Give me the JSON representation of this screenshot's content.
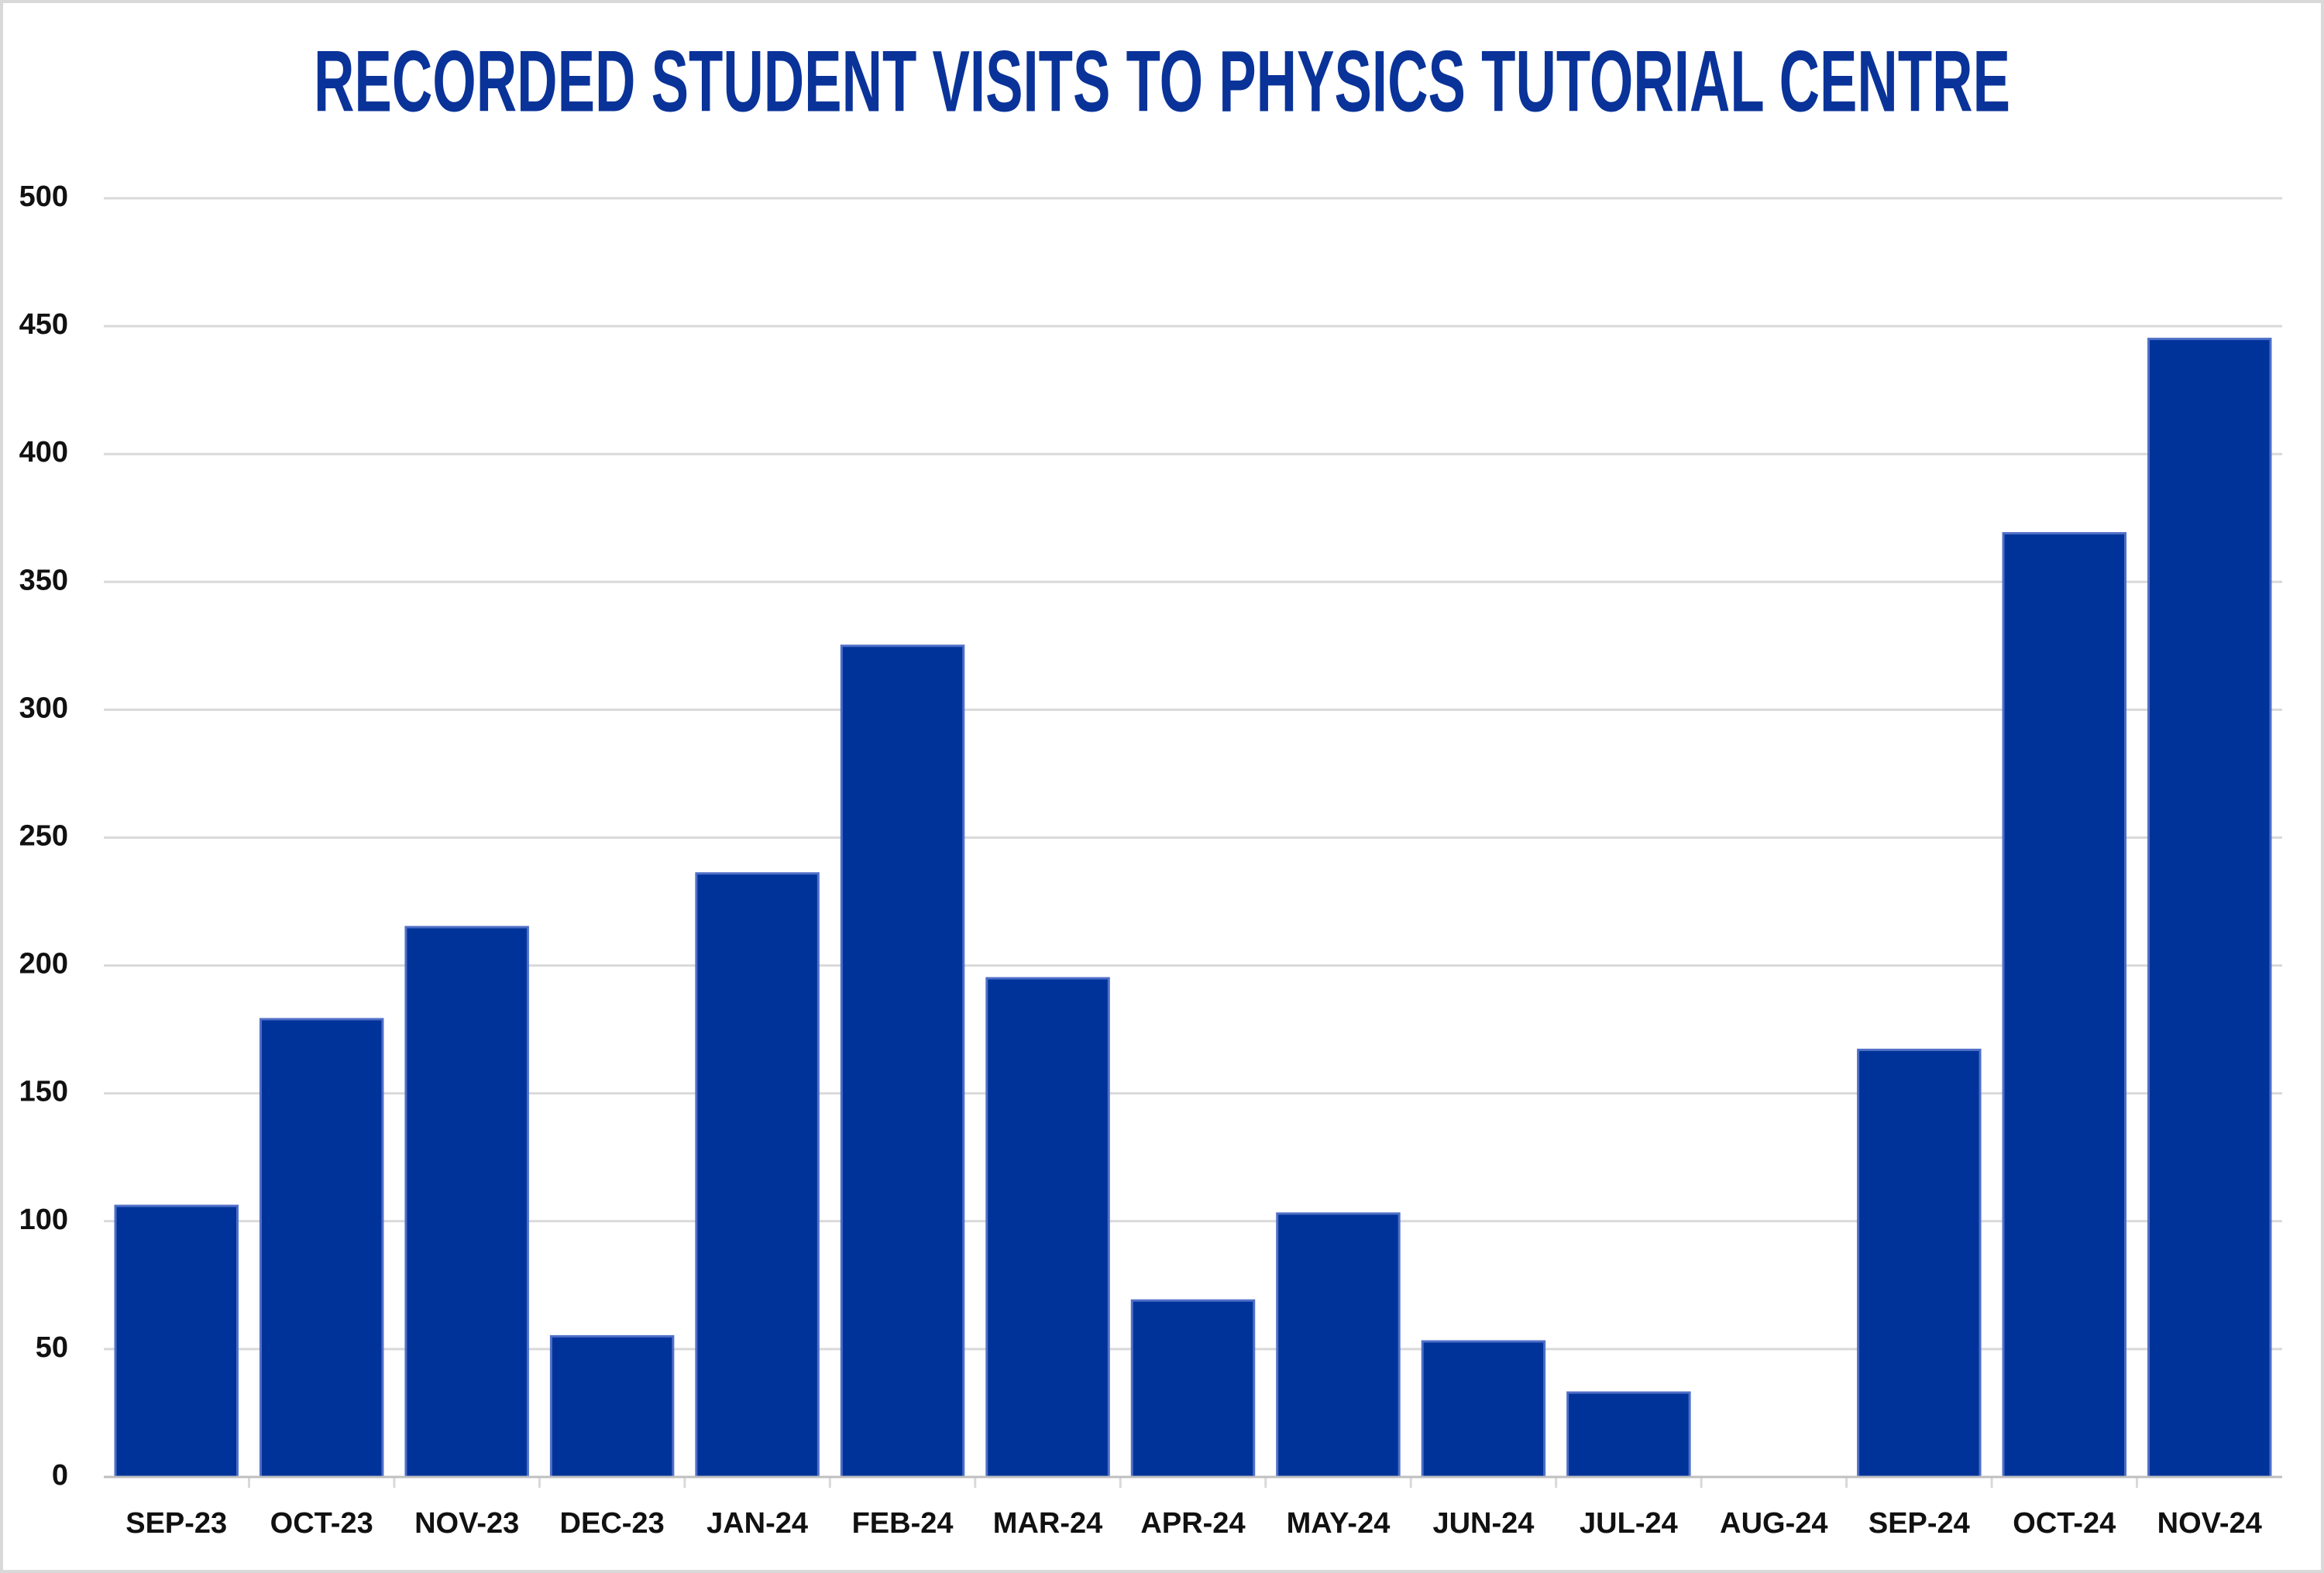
{
  "chart_data": {
    "type": "bar",
    "title": "RECORDED STUDENT VISITS TO PHYSICS TUTORIAL CENTRE",
    "categories": [
      "SEP-23",
      "OCT-23",
      "NOV-23",
      "DEC-23",
      "JAN-24",
      "FEB-24",
      "MAR-24",
      "APR-24",
      "MAY-24",
      "JUN-24",
      "JUL-24",
      "AUG-24",
      "SEP-24",
      "OCT-24",
      "NOV-24"
    ],
    "values": [
      106,
      179,
      215,
      55,
      236,
      325,
      195,
      69,
      103,
      53,
      33,
      0,
      167,
      369,
      445
    ],
    "color": "#003399",
    "ylim": [
      0,
      500
    ],
    "yticks": [
      0,
      50,
      100,
      150,
      200,
      250,
      300,
      350,
      400,
      450,
      500
    ],
    "grid": true
  }
}
